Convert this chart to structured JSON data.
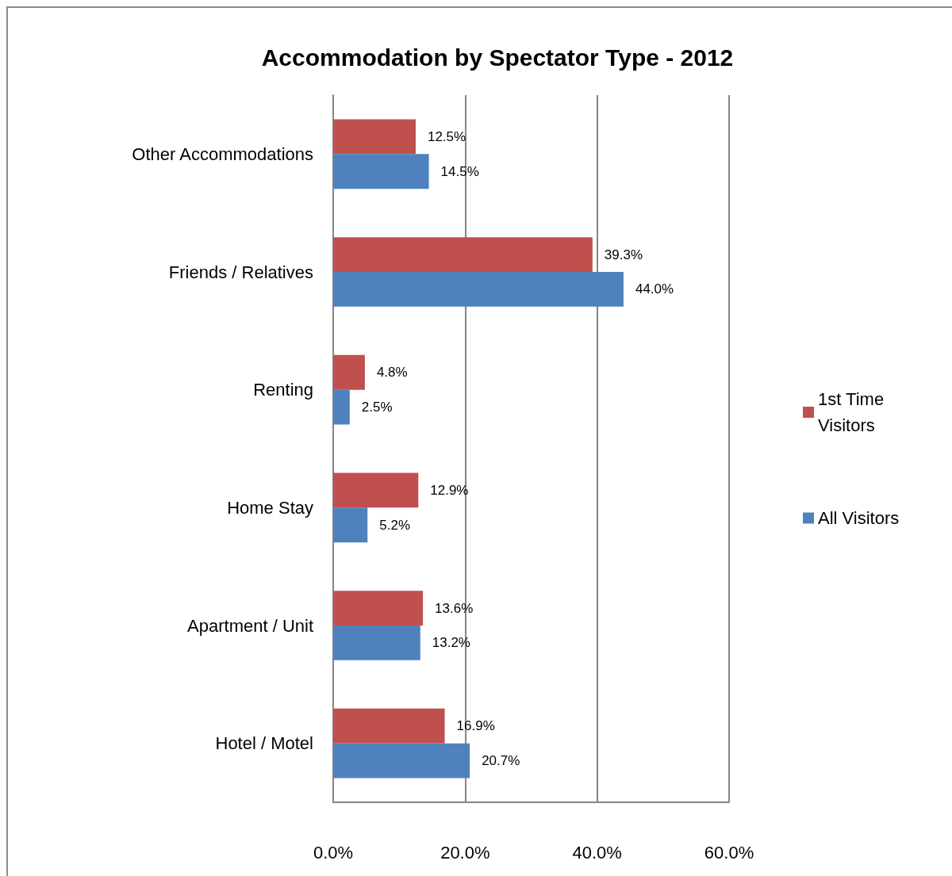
{
  "chart_data": {
    "type": "bar",
    "orientation": "horizontal",
    "title": "Accommodation by Spectator Type - 2012",
    "categories": [
      "Other Accommodations",
      "Friends / Relatives",
      "Renting",
      "Home Stay",
      "Apartment / Unit",
      "Hotel / Motel"
    ],
    "series": [
      {
        "name": "1st Time Visitors",
        "color": "#c0504d",
        "values": [
          12.5,
          39.3,
          4.8,
          12.9,
          13.6,
          16.9
        ],
        "value_labels": [
          "12.5%",
          "39.3%",
          "4.8%",
          "12.9%",
          "13.6%",
          "16.9%"
        ]
      },
      {
        "name": "All Visitors",
        "color": "#4f81bd",
        "values": [
          14.5,
          44.0,
          2.5,
          5.2,
          13.2,
          20.7
        ],
        "value_labels": [
          "14.5%",
          "44.0%",
          "2.5%",
          "5.2%",
          "13.2%",
          "20.7%"
        ]
      }
    ],
    "xlim": [
      0,
      60
    ],
    "xticks": [
      {
        "value": 0,
        "label": "0.0%"
      },
      {
        "value": 20,
        "label": "20.0%"
      },
      {
        "value": 40,
        "label": "40.0%"
      },
      {
        "value": 60,
        "label": "60.0%"
      }
    ],
    "grid": "x",
    "legend": "right"
  }
}
